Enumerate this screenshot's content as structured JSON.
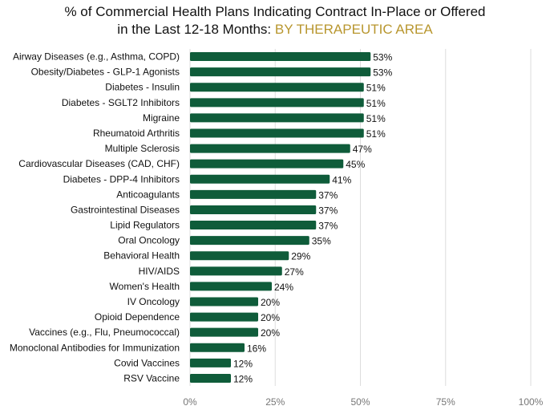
{
  "chart_data": {
    "type": "bar",
    "orientation": "horizontal",
    "title_line1": "% of Commercial Health Plans Indicating Contract In-Place or Offered",
    "title_line2": "in the Last 12-18 Months: ",
    "subtitle": "BY THERAPEUTIC AREA",
    "categories": [
      "Airway Diseases (e.g., Asthma, COPD)",
      "Obesity/Diabetes - GLP-1 Agonists",
      "Diabetes - Insulin",
      "Diabetes - SGLT2 Inhibitors",
      "Migraine",
      "Rheumatoid Arthritis",
      "Multiple Sclerosis",
      "Cardiovascular Diseases (CAD, CHF)",
      "Diabetes - DPP-4 Inhibitors",
      "Anticoagulants",
      "Gastrointestinal Diseases",
      "Lipid Regulators",
      "Oral Oncology",
      "Behavioral Health",
      "HIV/AIDS",
      "Women's Health",
      "IV Oncology",
      "Opioid Dependence",
      "Vaccines (e.g., Flu, Pneumococcal)",
      "Monoclonal Antibodies for Immunization",
      "Covid Vaccines",
      "RSV Vaccine"
    ],
    "values": [
      53,
      53,
      51,
      51,
      51,
      51,
      47,
      45,
      41,
      37,
      37,
      37,
      35,
      29,
      27,
      24,
      20,
      20,
      20,
      16,
      12,
      12
    ],
    "value_suffix": "%",
    "xlim": [
      0,
      100
    ],
    "xticks": [
      0,
      25,
      50,
      75,
      100
    ],
    "xtick_labels": [
      "0%",
      "25%",
      "50%",
      "75%",
      "100%"
    ],
    "grid": "vertical",
    "legend": "none",
    "bar_color": "#0f5c3a",
    "accent_color": "#b8962e",
    "grid_color": "#dddddd"
  }
}
